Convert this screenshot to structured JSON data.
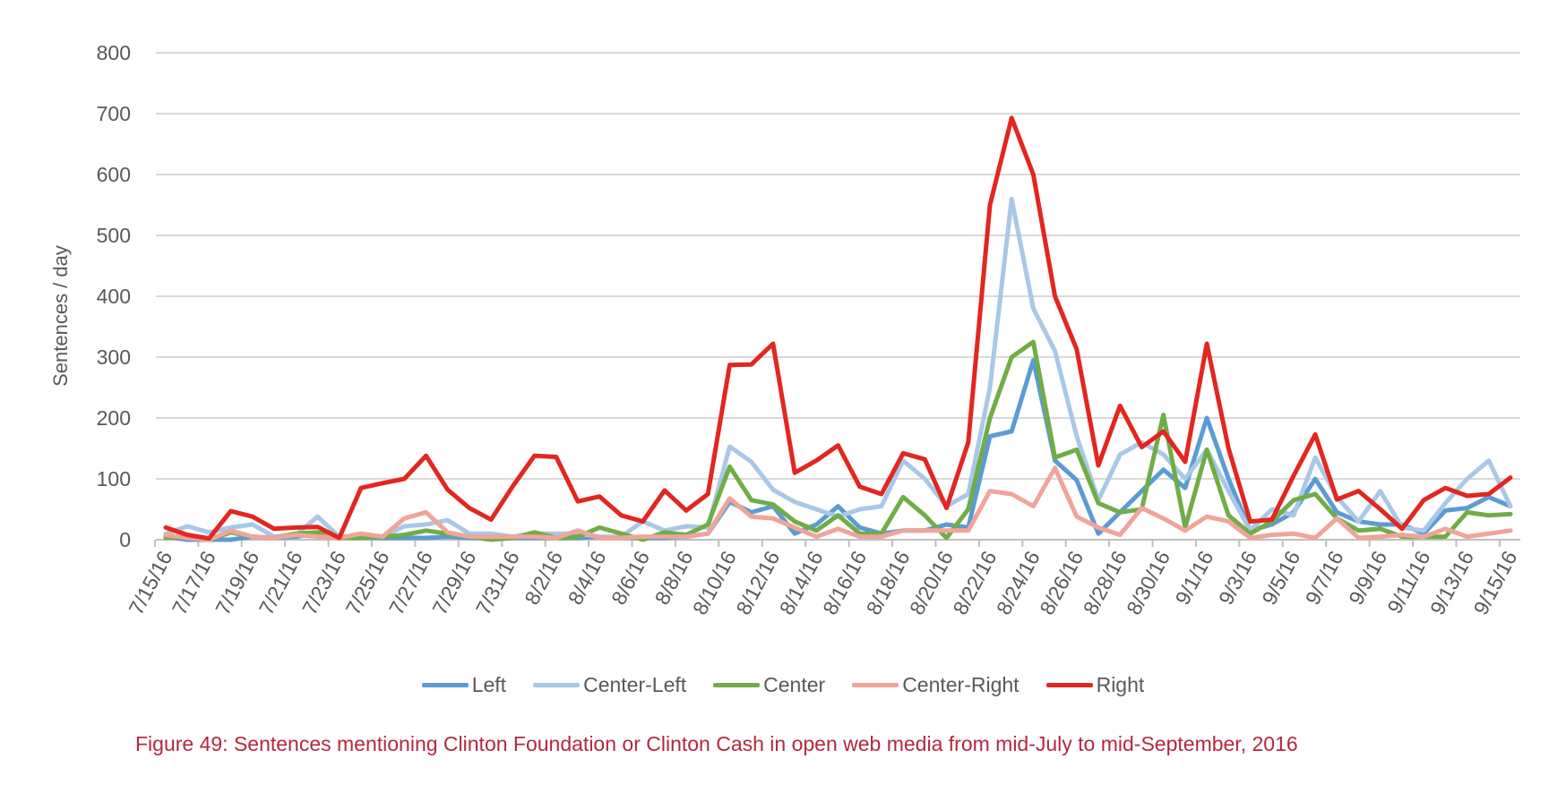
{
  "chart_data": {
    "type": "line",
    "title": "",
    "xlabel": "",
    "ylabel": "Sentences / day",
    "ylim": [
      0,
      800
    ],
    "yticks": [
      "0",
      "100",
      "200",
      "300",
      "400",
      "500",
      "600",
      "700",
      "800"
    ],
    "grid": true,
    "legend_position": "bottom",
    "x": [
      "7/15/16",
      "7/16/16",
      "7/17/16",
      "7/18/16",
      "7/19/16",
      "7/20/16",
      "7/21/16",
      "7/22/16",
      "7/23/16",
      "7/24/16",
      "7/25/16",
      "7/26/16",
      "7/27/16",
      "7/28/16",
      "7/29/16",
      "7/30/16",
      "7/31/16",
      "8/1/16",
      "8/2/16",
      "8/3/16",
      "8/4/16",
      "8/5/16",
      "8/6/16",
      "8/7/16",
      "8/8/16",
      "8/9/16",
      "8/10/16",
      "8/11/16",
      "8/12/16",
      "8/13/16",
      "8/14/16",
      "8/15/16",
      "8/16/16",
      "8/17/16",
      "8/18/16",
      "8/19/16",
      "8/20/16",
      "8/21/16",
      "8/22/16",
      "8/23/16",
      "8/24/16",
      "8/25/16",
      "8/26/16",
      "8/27/16",
      "8/28/16",
      "8/29/16",
      "8/30/16",
      "8/31/16",
      "9/1/16",
      "9/2/16",
      "9/3/16",
      "9/4/16",
      "9/5/16",
      "9/6/16",
      "9/7/16",
      "9/8/16",
      "9/9/16",
      "9/10/16",
      "9/11/16",
      "9/12/16",
      "9/13/16",
      "9/14/16",
      "9/15/16"
    ],
    "series": [
      {
        "name": "Left",
        "color": "#5b9bd5",
        "values": [
          5,
          0,
          0,
          0,
          5,
          3,
          5,
          10,
          3,
          3,
          3,
          3,
          3,
          5,
          3,
          3,
          3,
          3,
          3,
          3,
          5,
          3,
          3,
          3,
          5,
          10,
          62,
          45,
          55,
          10,
          25,
          55,
          20,
          10,
          15,
          15,
          25,
          20,
          170,
          178,
          295,
          130,
          98,
          10,
          45,
          80,
          115,
          85,
          200,
          100,
          15,
          25,
          45,
          100,
          45,
          30,
          25,
          25,
          10,
          48,
          52,
          70,
          55
        ]
      },
      {
        "name": "Center-Left",
        "color": "#a9c8e8",
        "values": [
          10,
          22,
          12,
          20,
          25,
          5,
          8,
          38,
          5,
          5,
          5,
          22,
          25,
          32,
          10,
          10,
          5,
          10,
          10,
          10,
          5,
          5,
          30,
          15,
          22,
          20,
          153,
          128,
          82,
          62,
          50,
          38,
          50,
          55,
          130,
          100,
          55,
          75,
          250,
          560,
          380,
          310,
          170,
          65,
          140,
          160,
          140,
          100,
          148,
          80,
          15,
          50,
          40,
          135,
          70,
          30,
          80,
          20,
          15,
          60,
          100,
          130,
          55
        ]
      },
      {
        "name": "Center",
        "color": "#70ad47",
        "values": [
          3,
          5,
          0,
          12,
          5,
          3,
          10,
          12,
          3,
          3,
          5,
          8,
          15,
          10,
          5,
          0,
          3,
          12,
          3,
          5,
          20,
          10,
          0,
          12,
          8,
          25,
          120,
          65,
          58,
          30,
          15,
          40,
          10,
          10,
          70,
          40,
          3,
          50,
          200,
          300,
          325,
          135,
          148,
          60,
          45,
          50,
          205,
          20,
          148,
          40,
          10,
          30,
          65,
          75,
          35,
          15,
          18,
          5,
          5,
          5,
          45,
          40,
          42
        ]
      },
      {
        "name": "Center-Right",
        "color": "#f1a49a",
        "values": [
          8,
          3,
          0,
          15,
          5,
          3,
          8,
          5,
          3,
          10,
          5,
          35,
          45,
          12,
          5,
          5,
          5,
          5,
          3,
          15,
          3,
          3,
          5,
          5,
          5,
          10,
          68,
          38,
          35,
          20,
          5,
          18,
          5,
          5,
          15,
          15,
          15,
          15,
          80,
          75,
          55,
          118,
          38,
          20,
          8,
          52,
          35,
          15,
          38,
          30,
          3,
          8,
          10,
          3,
          35,
          3,
          5,
          8,
          5,
          18,
          5,
          10,
          15
        ]
      },
      {
        "name": "Right",
        "color": "#e3261f",
        "values": [
          20,
          8,
          2,
          47,
          38,
          18,
          20,
          21,
          3,
          85,
          93,
          100,
          138,
          82,
          52,
          33,
          88,
          138,
          136,
          63,
          71,
          40,
          30,
          81,
          48,
          75,
          287,
          288,
          322,
          110,
          130,
          155,
          87,
          75,
          142,
          132,
          52,
          160,
          550,
          693,
          600,
          400,
          313,
          122,
          220,
          152,
          178,
          128,
          322,
          150,
          30,
          33,
          105,
          173,
          66,
          80,
          50,
          18,
          65,
          85,
          72,
          75,
          102
        ]
      }
    ]
  },
  "caption": "Figure 49: Sentences mentioning Clinton Foundation or Clinton Cash in open web media from mid-July to mid-September, 2016"
}
